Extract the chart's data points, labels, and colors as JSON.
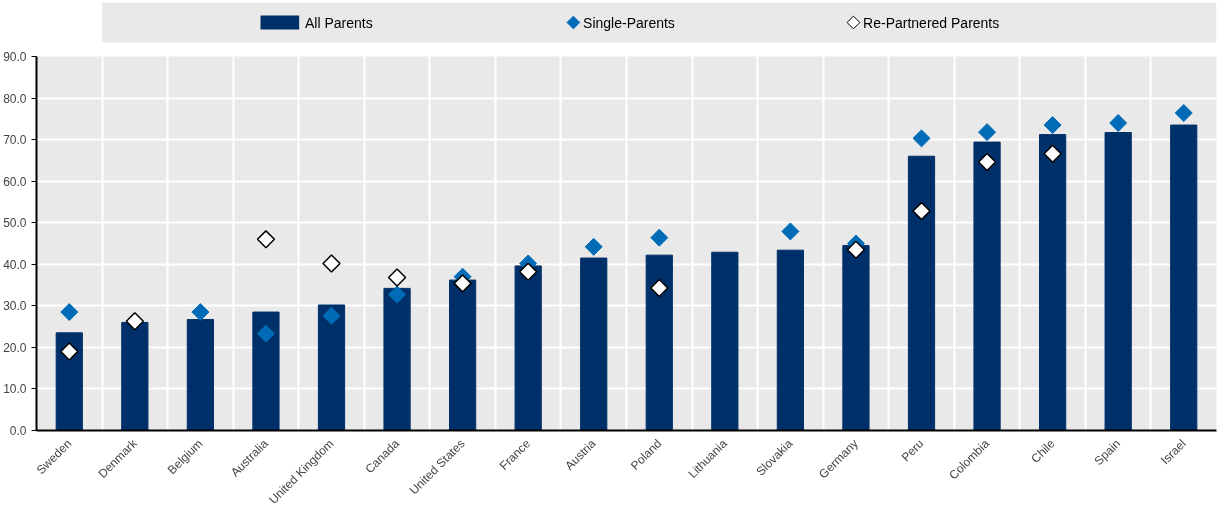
{
  "chart_data": {
    "type": "bar",
    "categories": [
      "Sweden",
      "Denmark",
      "Belgium",
      "Australia",
      "United Kingdom",
      "Canada",
      "United States",
      "France",
      "Austria",
      "Poland",
      "Lithuania",
      "Slovakia",
      "Germany",
      "Peru",
      "Colombia",
      "Chile",
      "Spain",
      "Israel"
    ],
    "series": [
      {
        "name": "All Parents",
        "color": "#003069",
        "values": [
          23.5,
          26,
          26.7,
          28.5,
          30.2,
          34.2,
          36.2,
          39.6,
          41.5,
          42.2,
          42.9,
          43.4,
          44.5,
          66,
          69.4,
          71.2,
          71.7,
          73.5
        ]
      },
      {
        "name": "Single-Parents",
        "type": "scatter",
        "marker": "diamond",
        "color": "#006bb6",
        "values": [
          28.5,
          null,
          28.5,
          23.3,
          27.6,
          32.7,
          37,
          40.2,
          44.2,
          46.4,
          null,
          47.9,
          45,
          70.3,
          71.8,
          73.5,
          74,
          76.4
        ]
      },
      {
        "name": "Re-Partnered Parents",
        "type": "scatter",
        "marker": "diamond",
        "color": "#ffffff",
        "values": [
          19,
          26.3,
          null,
          46,
          40.2,
          36.8,
          35.4,
          38.2,
          null,
          34.3,
          null,
          null,
          43.5,
          52.8,
          64.6,
          66.6,
          null,
          null
        ]
      }
    ],
    "ylim": [
      0,
      90
    ],
    "yticks": [
      {
        "value": 0,
        "label": "0.0"
      },
      {
        "value": 10,
        "label": "10.0"
      },
      {
        "value": 20,
        "label": "20.0"
      },
      {
        "value": 30,
        "label": "30.0"
      },
      {
        "value": 40,
        "label": "40.0"
      },
      {
        "value": 50,
        "label": "50.0"
      },
      {
        "value": 60,
        "label": "60.0"
      },
      {
        "value": 70,
        "label": "70.0"
      },
      {
        "value": 80,
        "label": "80.0"
      },
      {
        "value": 90,
        "label": "90.0"
      }
    ],
    "grid": true,
    "legend": "top"
  }
}
